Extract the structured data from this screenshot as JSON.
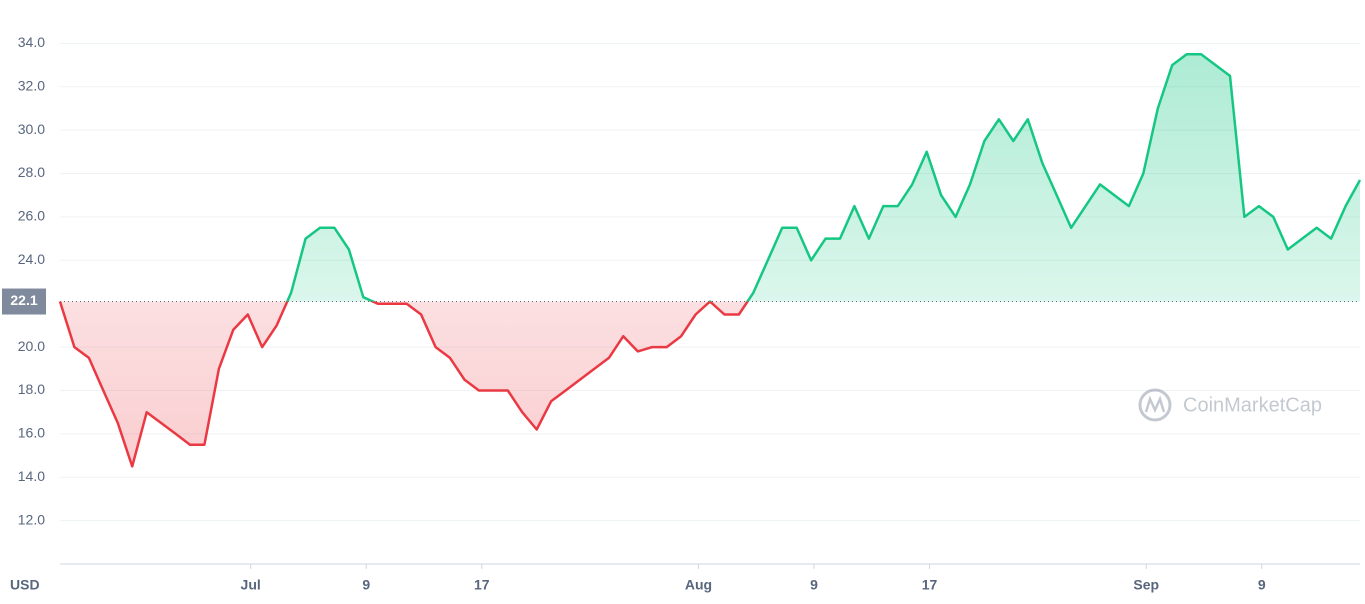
{
  "chart_data": {
    "type": "line",
    "ylabel": "USD",
    "watermark": "CoinMarketCap",
    "values": [
      22.1,
      20,
      19.5,
      18,
      16.5,
      14.5,
      17,
      16.5,
      16,
      15.5,
      15.5,
      19,
      20.8,
      21.5,
      20,
      21,
      22.5,
      25,
      25.5,
      25.5,
      24.5,
      22.3,
      22,
      22,
      22,
      21.5,
      20,
      19.5,
      18.5,
      18,
      18,
      18,
      17,
      16.2,
      17.5,
      18,
      18.5,
      19,
      19.5,
      20.5,
      19.8,
      20,
      20,
      20.5,
      21.5,
      22.1,
      21.5,
      21.5,
      22.5,
      24,
      25.5,
      25.5,
      24,
      25,
      25,
      26.5,
      25,
      26.5,
      26.5,
      27.5,
      29,
      27,
      26,
      27.5,
      29.5,
      30.5,
      29.5,
      30.5,
      28.5,
      27,
      25.5,
      26.5,
      27.5,
      27,
      26.5,
      28,
      31,
      33,
      33.5,
      33.5,
      33,
      32.5,
      26,
      26.5,
      26,
      24.5,
      25,
      25.5,
      25,
      26.5,
      27.7
    ],
    "above_color": "#16c784",
    "below_color": "#ea3943",
    "baseline": {
      "value": 22.1,
      "label": "22.1"
    },
    "xlim": [
      0,
      90
    ],
    "xticks": [
      {
        "value": 13.2,
        "label": "Jul"
      },
      {
        "value": 21.2,
        "label": "9"
      },
      {
        "value": 29.2,
        "label": "17"
      },
      {
        "value": 44.2,
        "label": "Aug"
      },
      {
        "value": 52.2,
        "label": "9"
      },
      {
        "value": 60.2,
        "label": "17"
      },
      {
        "value": 75.2,
        "label": "Sep"
      },
      {
        "value": 83.2,
        "label": "9"
      }
    ],
    "ylim": [
      10,
      36
    ],
    "yticks": [
      {
        "value": 12,
        "label": "12.0"
      },
      {
        "value": 14,
        "label": "14.0"
      },
      {
        "value": 16,
        "label": "16.0"
      },
      {
        "value": 18,
        "label": "18.0"
      },
      {
        "value": 20,
        "label": "20.0"
      },
      {
        "value": 24,
        "label": "24.0"
      },
      {
        "value": 26,
        "label": "26.0"
      },
      {
        "value": 28,
        "label": "28.0"
      },
      {
        "value": 30,
        "label": "30.0"
      },
      {
        "value": 32,
        "label": "32.0"
      },
      {
        "value": 34,
        "label": "34.0"
      }
    ],
    "grid": true
  }
}
